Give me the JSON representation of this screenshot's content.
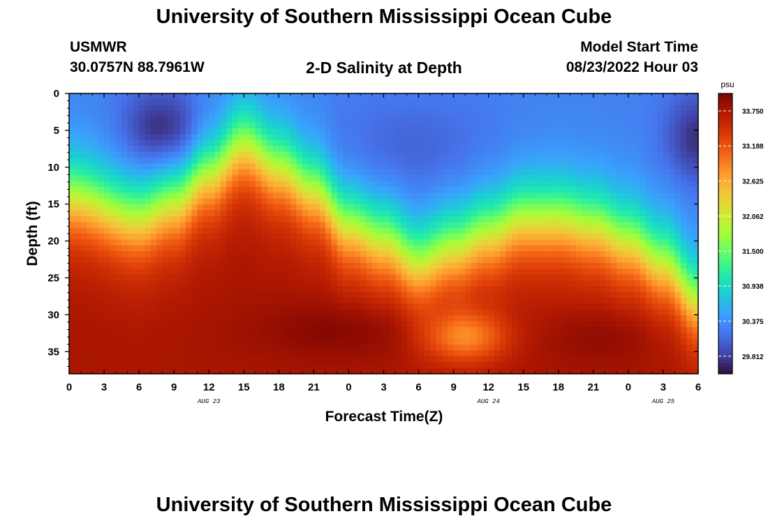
{
  "header": {
    "title": "University of Southern Mississippi Ocean Cube",
    "station_id": "USMWR",
    "station_coords": "30.0757N  88.7961W",
    "subtitle": "2-D Salinity at Depth",
    "model_label": "Model Start Time",
    "model_date": "08/23/2022 Hour 03"
  },
  "footer": {
    "title": "University of Southern Mississippi Ocean Cube"
  },
  "chart_data": {
    "type": "heatmap",
    "title": "2-D Salinity at Depth",
    "xlabel": "Forecast Time(Z)",
    "ylabel": "Depth (ft)",
    "x_tick_labels": [
      "0",
      "3",
      "6",
      "9",
      "12",
      "15",
      "18",
      "21",
      "0",
      "3",
      "6",
      "9",
      "12",
      "15",
      "18",
      "21",
      "0",
      "3",
      "6"
    ],
    "x_day_labels": [
      {
        "text": "AUG 23",
        "hour": 12
      },
      {
        "text": "AUG 24",
        "hour": 36
      },
      {
        "text": "AUG 25",
        "hour": 51
      }
    ],
    "xlim": [
      0,
      54
    ],
    "y_ticks": [
      0,
      5,
      10,
      15,
      20,
      25,
      30,
      35
    ],
    "ylim": [
      0,
      38
    ],
    "colorbar": {
      "unit": "psu",
      "min": 29.53,
      "max": 34.03,
      "tick_values": [
        "33.750",
        "33.188",
        "32.625",
        "32.062",
        "31.500",
        "30.938",
        "30.375",
        "29.812"
      ]
    },
    "halocline_depth_ft": [
      {
        "hour": 0,
        "depth": 14
      },
      {
        "hour": 6,
        "depth": 17
      },
      {
        "hour": 9,
        "depth": 15
      },
      {
        "hour": 12,
        "depth": 11
      },
      {
        "hour": 15,
        "depth": 7
      },
      {
        "hour": 18,
        "depth": 10
      },
      {
        "hour": 21,
        "depth": 13
      },
      {
        "hour": 24,
        "depth": 18
      },
      {
        "hour": 27,
        "depth": 20
      },
      {
        "hour": 30,
        "depth": 23
      },
      {
        "hour": 33,
        "depth": 21
      },
      {
        "hour": 36,
        "depth": 19
      },
      {
        "hour": 39,
        "depth": 17
      },
      {
        "hour": 42,
        "depth": 17
      },
      {
        "hour": 45,
        "depth": 18
      },
      {
        "hour": 48,
        "depth": 20
      },
      {
        "hour": 51,
        "depth": 23
      },
      {
        "hour": 54,
        "depth": 28
      }
    ],
    "colors": {
      "scale": [
        "#30123b",
        "#4145ab",
        "#4675ed",
        "#39a2fc",
        "#1bcfd4",
        "#24eca6",
        "#61fc6c",
        "#a4fc3b",
        "#d1e834",
        "#f3c63a",
        "#fe9b2d",
        "#f36315",
        "#d93806",
        "#b11901",
        "#7a0402"
      ]
    }
  }
}
